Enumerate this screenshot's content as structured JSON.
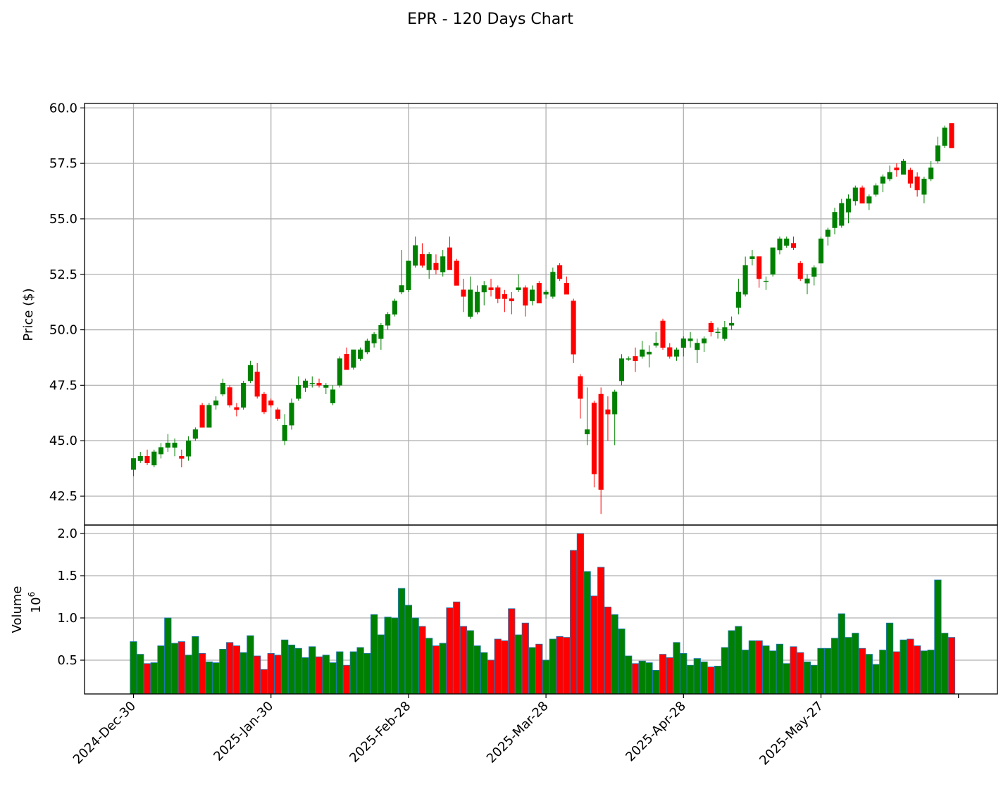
{
  "title": "EPR - 120 Days Chart",
  "colors": {
    "up": "#008000",
    "down": "#ff0000",
    "volume_edge": "#1f77b4",
    "grid": "#b0b0b0"
  },
  "chart_data": [
    {
      "type": "candlestick",
      "ylabel": "Price ($)",
      "ylim": [
        41.2,
        60.2
      ],
      "yticks": [
        "42.5",
        "45.0",
        "47.5",
        "50.0",
        "52.5",
        "55.0",
        "57.5",
        "60.0"
      ],
      "xticks": [
        "2024-Dec-30",
        "2025-Jan-30",
        "2025-Feb-28",
        "2025-Mar-28",
        "2025-Apr-28",
        "2025-May-27"
      ],
      "xtick_index": [
        0,
        20,
        40,
        60,
        80,
        100
      ],
      "grid": true,
      "ohlc": [
        [
          43.7,
          44.2,
          43.4,
          44.2
        ],
        [
          44.1,
          44.5,
          44.0,
          44.3
        ],
        [
          44.3,
          44.6,
          43.9,
          44.0
        ],
        [
          43.9,
          44.6,
          43.8,
          44.5
        ],
        [
          44.4,
          44.9,
          44.2,
          44.7
        ],
        [
          44.7,
          45.3,
          44.5,
          44.9
        ],
        [
          44.7,
          45.1,
          44.3,
          44.9
        ],
        [
          44.3,
          44.6,
          43.8,
          44.2
        ],
        [
          44.3,
          45.2,
          44.1,
          45.0
        ],
        [
          45.1,
          45.6,
          45.0,
          45.5
        ],
        [
          46.6,
          46.7,
          45.6,
          45.6
        ],
        [
          45.6,
          46.7,
          45.6,
          46.6
        ],
        [
          46.6,
          47.0,
          46.4,
          46.8
        ],
        [
          47.1,
          47.8,
          47.0,
          47.6
        ],
        [
          47.4,
          47.5,
          46.5,
          46.6
        ],
        [
          46.5,
          46.7,
          46.1,
          46.4
        ],
        [
          46.5,
          47.7,
          46.4,
          47.6
        ],
        [
          47.7,
          48.6,
          47.6,
          48.4
        ],
        [
          48.1,
          48.5,
          46.9,
          47.0
        ],
        [
          47.1,
          47.2,
          46.2,
          46.3
        ],
        [
          46.8,
          46.9,
          46.5,
          46.6
        ],
        [
          46.4,
          46.5,
          45.9,
          46.0
        ],
        [
          45.0,
          46.2,
          44.8,
          45.7
        ],
        [
          45.7,
          46.9,
          45.5,
          46.7
        ],
        [
          46.9,
          47.9,
          46.8,
          47.5
        ],
        [
          47.4,
          47.8,
          47.2,
          47.7
        ],
        [
          47.6,
          47.9,
          47.4,
          47.6
        ],
        [
          47.6,
          47.8,
          47.4,
          47.5
        ],
        [
          47.4,
          47.6,
          47.1,
          47.5
        ],
        [
          46.7,
          47.5,
          46.6,
          47.3
        ],
        [
          47.5,
          48.8,
          47.4,
          48.7
        ],
        [
          48.9,
          49.2,
          48.2,
          48.2
        ],
        [
          48.3,
          49.1,
          48.2,
          49.1
        ],
        [
          48.7,
          49.2,
          48.6,
          49.1
        ],
        [
          49.0,
          49.6,
          48.9,
          49.5
        ],
        [
          49.4,
          49.9,
          49.2,
          49.8
        ],
        [
          49.6,
          50.3,
          49.1,
          50.2
        ],
        [
          50.2,
          50.8,
          50.0,
          50.7
        ],
        [
          50.7,
          51.4,
          50.6,
          51.3
        ],
        [
          51.7,
          53.6,
          51.6,
          52.0
        ],
        [
          51.8,
          53.1,
          51.7,
          53.1
        ],
        [
          52.9,
          54.2,
          52.8,
          53.8
        ],
        [
          53.4,
          53.9,
          52.8,
          52.9
        ],
        [
          52.7,
          53.5,
          52.3,
          53.4
        ],
        [
          53.0,
          53.4,
          52.5,
          52.7
        ],
        [
          52.6,
          53.6,
          52.4,
          53.3
        ],
        [
          53.7,
          54.2,
          52.7,
          52.7
        ],
        [
          53.1,
          53.2,
          52.0,
          52.0
        ],
        [
          51.8,
          52.3,
          50.8,
          51.5
        ],
        [
          50.6,
          52.4,
          50.5,
          51.8
        ],
        [
          50.8,
          52.0,
          50.7,
          51.7
        ],
        [
          51.7,
          52.2,
          51.1,
          52.0
        ],
        [
          51.9,
          52.3,
          51.5,
          51.8
        ],
        [
          51.9,
          52.0,
          51.2,
          51.4
        ],
        [
          51.6,
          51.8,
          50.8,
          51.4
        ],
        [
          51.4,
          51.7,
          50.7,
          51.3
        ],
        [
          51.8,
          52.5,
          51.7,
          51.9
        ],
        [
          51.9,
          52.0,
          50.6,
          51.1
        ],
        [
          51.3,
          52.0,
          51.1,
          51.8
        ],
        [
          52.1,
          52.2,
          51.2,
          51.2
        ],
        [
          51.6,
          51.8,
          51.4,
          51.7
        ],
        [
          51.5,
          52.8,
          51.4,
          52.6
        ],
        [
          52.9,
          53.0,
          52.2,
          52.3
        ],
        [
          52.1,
          52.4,
          51.6,
          51.6
        ],
        [
          51.3,
          51.4,
          48.5,
          48.9
        ],
        [
          47.9,
          48.0,
          46.0,
          46.9
        ],
        [
          45.3,
          47.4,
          44.8,
          45.5
        ],
        [
          46.7,
          46.8,
          42.9,
          43.5
        ],
        [
          47.1,
          47.4,
          41.7,
          42.8
        ],
        [
          46.4,
          47.0,
          45.0,
          46.2
        ],
        [
          46.2,
          47.3,
          44.8,
          47.2
        ],
        [
          47.7,
          48.9,
          47.5,
          48.7
        ],
        [
          48.7,
          48.8,
          48.6,
          48.7
        ],
        [
          48.8,
          49.2,
          48.1,
          48.6
        ],
        [
          48.8,
          49.5,
          48.7,
          49.1
        ],
        [
          48.9,
          49.3,
          48.3,
          49.0
        ],
        [
          49.3,
          49.9,
          49.2,
          49.4
        ],
        [
          50.4,
          50.5,
          49.1,
          49.2
        ],
        [
          49.2,
          49.4,
          48.7,
          48.8
        ],
        [
          48.8,
          49.2,
          48.6,
          49.1
        ],
        [
          49.2,
          49.7,
          48.8,
          49.6
        ],
        [
          49.5,
          49.9,
          49.2,
          49.6
        ],
        [
          49.1,
          49.6,
          48.5,
          49.4
        ],
        [
          49.4,
          49.7,
          49.0,
          49.6
        ],
        [
          50.3,
          50.4,
          49.7,
          49.9
        ],
        [
          49.9,
          50.1,
          49.6,
          49.9
        ],
        [
          49.6,
          50.4,
          49.5,
          50.1
        ],
        [
          50.2,
          50.6,
          50.0,
          50.3
        ],
        [
          51.0,
          52.3,
          50.7,
          51.7
        ],
        [
          51.6,
          53.3,
          51.5,
          52.9
        ],
        [
          53.2,
          53.6,
          52.9,
          53.3
        ],
        [
          53.3,
          53.3,
          51.9,
          52.3
        ],
        [
          52.2,
          52.4,
          51.8,
          52.2
        ],
        [
          52.5,
          53.6,
          52.4,
          53.7
        ],
        [
          53.6,
          54.2,
          53.4,
          54.1
        ],
        [
          53.8,
          54.2,
          53.7,
          54.1
        ],
        [
          53.9,
          54.2,
          53.6,
          53.7
        ],
        [
          53.0,
          53.1,
          52.2,
          52.3
        ],
        [
          52.1,
          52.5,
          51.6,
          52.3
        ],
        [
          52.4,
          52.9,
          52.0,
          52.8
        ],
        [
          53.0,
          54.2,
          53.0,
          54.1
        ],
        [
          54.2,
          54.6,
          53.8,
          54.5
        ],
        [
          54.6,
          55.5,
          54.3,
          55.3
        ],
        [
          54.7,
          55.9,
          54.6,
          55.7
        ],
        [
          55.3,
          56.1,
          54.8,
          55.9
        ],
        [
          55.8,
          56.5,
          55.6,
          56.4
        ],
        [
          56.4,
          56.5,
          55.7,
          55.7
        ],
        [
          55.7,
          56.1,
          55.4,
          56.0
        ],
        [
          56.1,
          56.6,
          56.0,
          56.5
        ],
        [
          56.6,
          57.0,
          56.2,
          56.9
        ],
        [
          56.8,
          57.4,
          56.7,
          57.1
        ],
        [
          57.3,
          57.5,
          56.9,
          57.2
        ],
        [
          57.0,
          57.7,
          57.0,
          57.6
        ],
        [
          57.2,
          57.3,
          56.4,
          56.6
        ],
        [
          56.9,
          57.1,
          56.0,
          56.3
        ],
        [
          56.1,
          56.9,
          55.7,
          56.8
        ],
        [
          56.8,
          57.6,
          56.7,
          57.3
        ],
        [
          57.6,
          58.7,
          57.5,
          58.3
        ],
        [
          58.3,
          59.2,
          58.2,
          59.1
        ],
        [
          59.3,
          59.3,
          58.2,
          58.2
        ]
      ]
    },
    {
      "type": "bar",
      "ylabel": "Volume",
      "scale_label": "10",
      "scale_exp": "6",
      "ylim": [
        0.1,
        2.1
      ],
      "yticks": [
        "0.5",
        "1.0",
        "1.5",
        "2.0"
      ],
      "values": [
        0.72,
        0.57,
        0.46,
        0.47,
        0.67,
        1.0,
        0.7,
        0.72,
        0.56,
        0.78,
        0.58,
        0.48,
        0.47,
        0.63,
        0.71,
        0.67,
        0.59,
        0.79,
        0.55,
        0.39,
        0.58,
        0.56,
        0.74,
        0.68,
        0.64,
        0.53,
        0.66,
        0.54,
        0.56,
        0.47,
        0.6,
        0.44,
        0.6,
        0.65,
        0.58,
        1.04,
        0.8,
        1.01,
        1.0,
        1.35,
        1.15,
        1.0,
        0.9,
        0.76,
        0.67,
        0.7,
        1.12,
        1.19,
        0.9,
        0.85,
        0.67,
        0.59,
        0.5,
        0.75,
        0.73,
        1.11,
        0.8,
        0.94,
        0.65,
        0.69,
        0.5,
        0.75,
        0.78,
        0.77,
        1.8,
        2.0,
        1.55,
        1.26,
        1.6,
        1.13,
        1.04,
        0.87,
        0.55,
        0.46,
        0.49,
        0.47,
        0.38,
        0.57,
        0.53,
        0.71,
        0.58,
        0.44,
        0.52,
        0.48,
        0.42,
        0.43,
        0.65,
        0.85,
        0.9,
        0.62,
        0.73,
        0.73,
        0.67,
        0.61,
        0.69,
        0.46,
        0.66,
        0.59,
        0.48,
        0.44,
        0.64,
        0.64,
        0.76,
        1.05,
        0.77,
        0.82,
        0.64,
        0.57,
        0.45,
        0.62,
        0.94,
        0.6,
        0.74,
        0.75,
        0.67,
        0.61,
        0.62,
        1.45,
        0.82,
        0.77
      ]
    }
  ]
}
